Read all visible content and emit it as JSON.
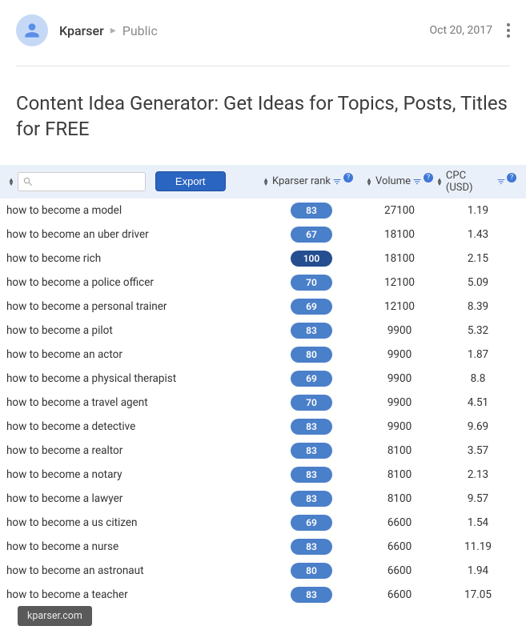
{
  "header": {
    "author": "Kparser",
    "separator": "▸",
    "visibility": "Public",
    "date": "Oct 20, 2017"
  },
  "title": "Content Idea Generator: Get Ideas for Topics, Posts, Titles for FREE",
  "toolbar": {
    "export_label": "Export",
    "search_placeholder": "",
    "columns": {
      "rank": "Kparser rank",
      "volume": "Volume",
      "cpc": "CPC (USD)"
    }
  },
  "highlight_rank": 100,
  "rows": [
    {
      "keyword": "how to become a model",
      "rank": 83,
      "volume": 27100,
      "cpc": "1.19"
    },
    {
      "keyword": "how to become an uber driver",
      "rank": 67,
      "volume": 18100,
      "cpc": "1.43"
    },
    {
      "keyword": "how to become rich",
      "rank": 100,
      "volume": 18100,
      "cpc": "2.15"
    },
    {
      "keyword": "how to become a police officer",
      "rank": 70,
      "volume": 12100,
      "cpc": "5.09"
    },
    {
      "keyword": "how to become a personal trainer",
      "rank": 69,
      "volume": 12100,
      "cpc": "8.39"
    },
    {
      "keyword": "how to become a pilot",
      "rank": 83,
      "volume": 9900,
      "cpc": "5.32"
    },
    {
      "keyword": "how to become an actor",
      "rank": 80,
      "volume": 9900,
      "cpc": "1.87"
    },
    {
      "keyword": "how to become a physical therapist",
      "rank": 69,
      "volume": 9900,
      "cpc": "8.8"
    },
    {
      "keyword": "how to become a travel agent",
      "rank": 70,
      "volume": 9900,
      "cpc": "4.51"
    },
    {
      "keyword": "how to become a detective",
      "rank": 83,
      "volume": 9900,
      "cpc": "9.69"
    },
    {
      "keyword": "how to become a realtor",
      "rank": 83,
      "volume": 8100,
      "cpc": "3.57"
    },
    {
      "keyword": "how to become a notary",
      "rank": 83,
      "volume": 8100,
      "cpc": "2.13"
    },
    {
      "keyword": "how to become a lawyer",
      "rank": 83,
      "volume": 8100,
      "cpc": "9.57"
    },
    {
      "keyword": "how to become a us citizen",
      "rank": 69,
      "volume": 6600,
      "cpc": "1.54"
    },
    {
      "keyword": "how to become a nurse",
      "rank": 83,
      "volume": 6600,
      "cpc": "11.19"
    },
    {
      "keyword": "how to become an astronaut",
      "rank": 80,
      "volume": 6600,
      "cpc": "1.94"
    },
    {
      "keyword": "how to become a teacher",
      "rank": 83,
      "volume": 6600,
      "cpc": "17.05"
    }
  ],
  "footer_pill": "kparser.com",
  "colors": {
    "toolbar_bg": "#eaf0fa",
    "badge_bg": "#4a7fc9",
    "badge_bg_highlight": "#244e8f",
    "accent": "#2b65c2"
  }
}
